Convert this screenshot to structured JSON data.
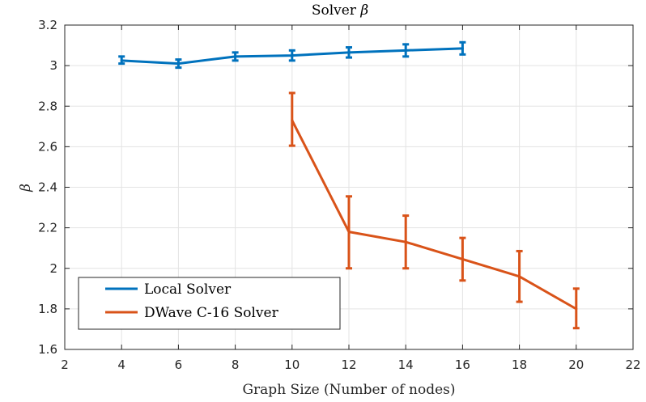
{
  "chart_data": {
    "type": "line",
    "title": "Solver",
    "title_symbol": "β",
    "xlabel": "Graph Size (Number of nodes)",
    "ylabel": "β",
    "xlim": [
      2,
      22
    ],
    "ylim": [
      1.6,
      3.2
    ],
    "xticks": [
      2,
      4,
      6,
      8,
      10,
      12,
      14,
      16,
      18,
      20,
      22
    ],
    "yticks": [
      1.6,
      1.8,
      2,
      2.2,
      2.4,
      2.6,
      2.8,
      3,
      3.2
    ],
    "xtick_labels": [
      "2",
      "4",
      "6",
      "8",
      "10",
      "12",
      "14",
      "16",
      "18",
      "20",
      "22"
    ],
    "ytick_labels": [
      "1.6",
      "1.8",
      "2",
      "2.2",
      "2.4",
      "2.6",
      "2.8",
      "3",
      "3.2"
    ],
    "grid": true,
    "legend_position": "bottom-left",
    "series": [
      {
        "name": "Local Solver",
        "color": "#0072bd",
        "x": [
          4,
          6,
          8,
          10,
          12,
          14,
          16
        ],
        "y": [
          3.025,
          3.01,
          3.045,
          3.05,
          3.065,
          3.075,
          3.085
        ],
        "err_low": [
          3.01,
          2.99,
          3.025,
          3.025,
          3.04,
          3.045,
          3.055
        ],
        "err_high": [
          3.045,
          3.03,
          3.065,
          3.075,
          3.09,
          3.105,
          3.115
        ]
      },
      {
        "name": "DWave C-16 Solver",
        "color": "#d95319",
        "x": [
          10,
          12,
          14,
          16,
          18,
          20
        ],
        "y": [
          2.73,
          2.18,
          2.13,
          2.045,
          1.96,
          1.8
        ],
        "err_low": [
          2.605,
          2.0,
          2.0,
          1.94,
          1.835,
          1.705
        ],
        "err_high": [
          2.865,
          2.355,
          2.26,
          2.15,
          2.085,
          1.9
        ]
      }
    ]
  }
}
